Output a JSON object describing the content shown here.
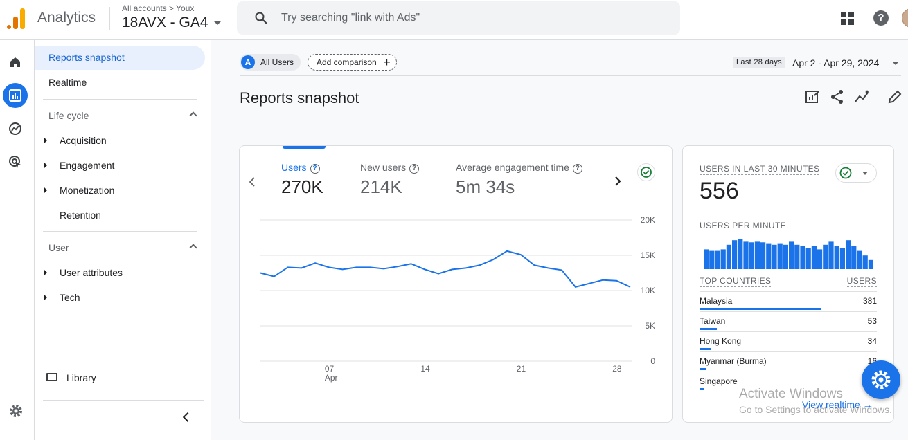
{
  "header": {
    "app_name": "Analytics",
    "breadcrumb": "All accounts > Youx",
    "property": "18AVX - GA4",
    "search_placeholder": "Try searching \"link with Ads\""
  },
  "sidebar": {
    "items": [
      {
        "label": "Reports snapshot"
      },
      {
        "label": "Realtime"
      }
    ],
    "lifecycle": {
      "title": "Life cycle",
      "items": [
        "Acquisition",
        "Engagement",
        "Monetization",
        "Retention"
      ]
    },
    "user": {
      "title": "User",
      "items": [
        "User attributes",
        "Tech"
      ]
    },
    "library": "Library"
  },
  "toolbar": {
    "segment_letter": "A",
    "segment": "All Users",
    "add_comparison": "Add comparison",
    "date_label": "Last 28 days",
    "date_range": "Apr 2 - Apr 29, 2024"
  },
  "page": {
    "title": "Reports snapshot"
  },
  "metrics": [
    {
      "label": "Users",
      "value": "270K"
    },
    {
      "label": "New users",
      "value": "214K"
    },
    {
      "label": "Average engagement time",
      "value": "5m 34s"
    }
  ],
  "chart_data": {
    "type": "line",
    "x_ticks": [
      {
        "label": "07",
        "sublabel": "Apr"
      },
      {
        "label": "14",
        "sublabel": ""
      },
      {
        "label": "21",
        "sublabel": ""
      },
      {
        "label": "28",
        "sublabel": ""
      }
    ],
    "y_ticks": [
      "20K",
      "15K",
      "10K",
      "5K",
      "0"
    ],
    "ylim": [
      0,
      20000
    ],
    "series": [
      {
        "color": "#1a73e8",
        "values": [
          12500,
          12000,
          13300,
          13200,
          13900,
          13300,
          13000,
          13300,
          13300,
          13100,
          13400,
          13800,
          13000,
          12400,
          13000,
          13200,
          13600,
          14400,
          15600,
          15100,
          13600,
          13200,
          12900,
          10500,
          11000,
          11500,
          11400,
          10500
        ]
      }
    ]
  },
  "realtime": {
    "title": "USERS IN LAST 30 MINUTES",
    "value": "556",
    "per_minute_label": "USERS PER MINUTE",
    "per_minute": [
      0.65,
      0.6,
      0.6,
      0.65,
      0.8,
      0.95,
      1.0,
      0.9,
      0.88,
      0.9,
      0.88,
      0.85,
      0.8,
      0.85,
      0.8,
      0.9,
      0.8,
      0.75,
      0.7,
      0.75,
      0.65,
      0.8,
      0.9,
      0.75,
      0.7,
      0.95,
      0.75,
      0.6,
      0.45,
      0.3
    ],
    "countries_header": "TOP COUNTRIES",
    "users_header": "USERS",
    "countries": [
      {
        "name": "Malaysia",
        "users": "381",
        "share": 1.0
      },
      {
        "name": "Taiwan",
        "users": "53",
        "share": 0.14
      },
      {
        "name": "Hong Kong",
        "users": "34",
        "share": 0.09
      },
      {
        "name": "Myanmar (Burma)",
        "users": "16",
        "share": 0.05
      },
      {
        "name": "Singapore",
        "users": "",
        "share": 0.04
      }
    ],
    "view_link": "View realtime →"
  },
  "watermark": {
    "line1": "Activate Windows",
    "line2": "Go to Settings to activate Windows."
  }
}
